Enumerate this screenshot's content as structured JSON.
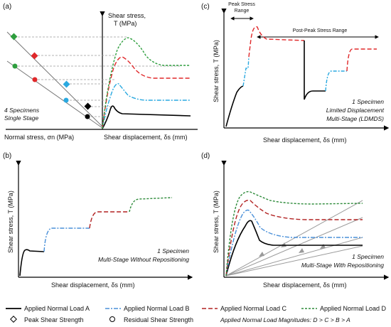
{
  "panels": {
    "a": {
      "label": "(a)",
      "y_axis_line1": "Shear stress,",
      "y_axis_line2": "T (MPa)",
      "x_axis_left": "Normal stress, σn (MPa)",
      "x_axis_right": "Shear displacement, δs (mm)",
      "note_line1": "4 Specimens",
      "note_line2": "Single Stage"
    },
    "b": {
      "label": "(b)",
      "y_axis": "Shear stress, T (MPa)",
      "x_axis": "Shear displacement, δs (mm)",
      "note_line1": "1 Specimen",
      "note_line2": "Multi-Stage Without Repositioning"
    },
    "c": {
      "label": "(c)",
      "y_axis": "Shear stress, T (MPa)",
      "x_axis": "Shear displacement, δs (mm)",
      "peak_range_line1": "Peak Stress",
      "peak_range_line2": "Range",
      "post_peak_range": "Post-Peak Stress Range",
      "note_line1": "1 Specimen",
      "note_line2": "Limited Displacement",
      "note_line3": "Multi-Stage (LDMDS)"
    },
    "d": {
      "label": "(d)",
      "y_axis": "Shear stress, T (MPa)",
      "x_axis": "Shear displacement, δs (mm)",
      "note_line1": "1 Specimen",
      "note_line2": "Multi-Stage With Repositioning"
    }
  },
  "legend": {
    "load_a": "Applied Normal Load A",
    "load_b": "Applied Normal Load B",
    "load_c": "Applied Normal Load C",
    "load_d": "Applied Normal Load D",
    "peak": "Peak Shear Strength",
    "residual": "Residual Shear Strength",
    "magnitudes": "Applied Normal Load Magnitudes: D > C > B > A"
  },
  "colors": {
    "load_a": "#000000",
    "load_b": "#4a90d9",
    "load_c": "#b22222",
    "load_d": "#2e8b3a",
    "marker_green": "#2e9e3e",
    "marker_red": "#e0282a",
    "marker_blue": "#2aa9e0"
  }
}
